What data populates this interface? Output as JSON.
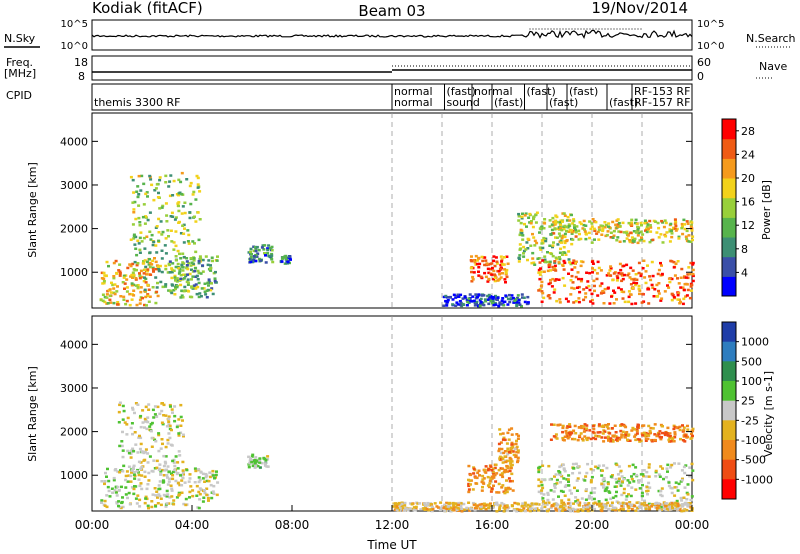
{
  "header": {
    "site": "Kodiak (fitACF)",
    "beam": "Beam 03",
    "date": "19/Nov/2014"
  },
  "params": {
    "nsky_label": "N.Sky",
    "nsearch_label": "N.Search",
    "freq_label_1": "Freq.",
    "freq_label_2": "[MHz]",
    "nave_label": "Nave",
    "cpid_label": "CPID",
    "noise_left_ticks": [
      "10^5",
      "10^0"
    ],
    "noise_right_ticks": [
      "10^5",
      "10^0"
    ],
    "freq_ticks": [
      "18",
      "8"
    ],
    "nave_ticks": [
      "60",
      "0"
    ],
    "cpid_entries": [
      {
        "text": "themis 3300 RF",
        "t": 0.0,
        "row": 1
      },
      {
        "text": "normal",
        "t": 12.0,
        "row": 0
      },
      {
        "text": "normal",
        "t": 12.0,
        "row": 1
      },
      {
        "text": "(fast)",
        "t": 14.1,
        "row": 0
      },
      {
        "text": "sound",
        "t": 14.1,
        "row": 1
      },
      {
        "text": "normal",
        "t": 15.2,
        "row": 0
      },
      {
        "text": "(fast)",
        "t": 16.0,
        "row": 1
      },
      {
        "text": "(fast)",
        "t": 17.3,
        "row": 0
      },
      {
        "text": "(fast)",
        "t": 18.2,
        "row": 1
      },
      {
        "text": "(fast)",
        "t": 19.0,
        "row": 0
      },
      {
        "text": "(fast)",
        "t": 20.6,
        "row": 1
      },
      {
        "text": "RF-153 RF",
        "t": 21.6,
        "row": 0
      },
      {
        "text": "RF-157 RF",
        "t": 21.6,
        "row": 1
      }
    ]
  },
  "chart_data": [
    {
      "type": "heatmap",
      "name": "power",
      "ylabel": "Slant Range [km]",
      "x_range_hours": [
        0,
        24
      ],
      "y_range_km": [
        180,
        4650
      ],
      "y_ticks": [
        1000,
        2000,
        3000,
        4000
      ],
      "colorbar": {
        "label": "Power [dB]",
        "range": [
          0,
          30
        ],
        "ticks": [
          4,
          8,
          12,
          16,
          20,
          24,
          28
        ],
        "colors": [
          "#0000ff",
          "#3a4fa8",
          "#3d8f74",
          "#57b44c",
          "#98cf3a",
          "#f2d21b",
          "#f59a1c",
          "#ef5b14",
          "#ff0000"
        ]
      },
      "echo_regions": [
        {
          "t0": 0.3,
          "t1": 2.6,
          "r0": 260,
          "r1": 1350,
          "level": 0.65
        },
        {
          "t0": 1.5,
          "t1": 4.3,
          "r0": 600,
          "r1": 3300,
          "level": 0.45
        },
        {
          "t0": 3.0,
          "t1": 5.0,
          "r0": 450,
          "r1": 1400,
          "level": 0.35
        },
        {
          "t0": 6.2,
          "t1": 7.2,
          "r0": 1250,
          "r1": 1650,
          "level": 0.25
        },
        {
          "t0": 7.5,
          "t1": 7.9,
          "r0": 1200,
          "r1": 1400,
          "level": 0.2
        },
        {
          "t0": 14.0,
          "t1": 17.4,
          "r0": 250,
          "r1": 520,
          "level": 0.12
        },
        {
          "t0": 15.1,
          "t1": 16.6,
          "r0": 800,
          "r1": 1400,
          "level": 0.85
        },
        {
          "t0": 17.0,
          "t1": 19.2,
          "r0": 1200,
          "r1": 2400,
          "level": 0.5
        },
        {
          "t0": 17.8,
          "t1": 24.0,
          "r0": 300,
          "r1": 1300,
          "level": 0.85
        },
        {
          "t0": 18.3,
          "t1": 24.0,
          "r0": 1700,
          "r1": 2250,
          "level": 0.6
        }
      ]
    },
    {
      "type": "heatmap",
      "name": "velocity",
      "xlabel": "Time UT",
      "ylabel": "Slant Range [km]",
      "x_range_hours": [
        0,
        24
      ],
      "x_tick_labels": [
        "00:00",
        "04:00",
        "08:00",
        "12:00",
        "16:00",
        "20:00",
        "00:00"
      ],
      "y_range_km": [
        180,
        4650
      ],
      "y_ticks": [
        1000,
        2000,
        3000,
        4000
      ],
      "colorbar": {
        "label": "Velocity [m s-1]",
        "ticks": [
          "1000",
          "500",
          "100",
          "25",
          "-25",
          "-100",
          "-500",
          "-1000"
        ],
        "colors": [
          "#1f3da8",
          "#2e7dbf",
          "#2f8f4e",
          "#4fc232",
          "#c8c8c8",
          "#e3b21f",
          "#f08a1c",
          "#ef4d14",
          "#ff0000"
        ]
      },
      "echo_regions": [
        {
          "t0": 0.3,
          "t1": 5.0,
          "r0": 260,
          "r1": 1200,
          "level": 0.0
        },
        {
          "t0": 1.0,
          "t1": 3.6,
          "r0": 1000,
          "r1": 2700,
          "level": 0.0
        },
        {
          "t0": 6.2,
          "t1": 7.0,
          "r0": 1200,
          "r1": 1500,
          "level": 0.15
        },
        {
          "t0": 15.0,
          "t1": 16.8,
          "r0": 600,
          "r1": 1300,
          "level": -0.45
        },
        {
          "t0": 16.2,
          "t1": 17.0,
          "r0": 1300,
          "r1": 2100,
          "level": -0.4
        },
        {
          "t0": 17.8,
          "t1": 24.0,
          "r0": 300,
          "r1": 1300,
          "level": 0.0
        },
        {
          "t0": 18.3,
          "t1": 24.0,
          "r0": 1800,
          "r1": 2200,
          "level": -0.5
        },
        {
          "t0": 12.0,
          "t1": 24.0,
          "r0": 200,
          "r1": 400,
          "level": -0.2
        }
      ]
    }
  ]
}
